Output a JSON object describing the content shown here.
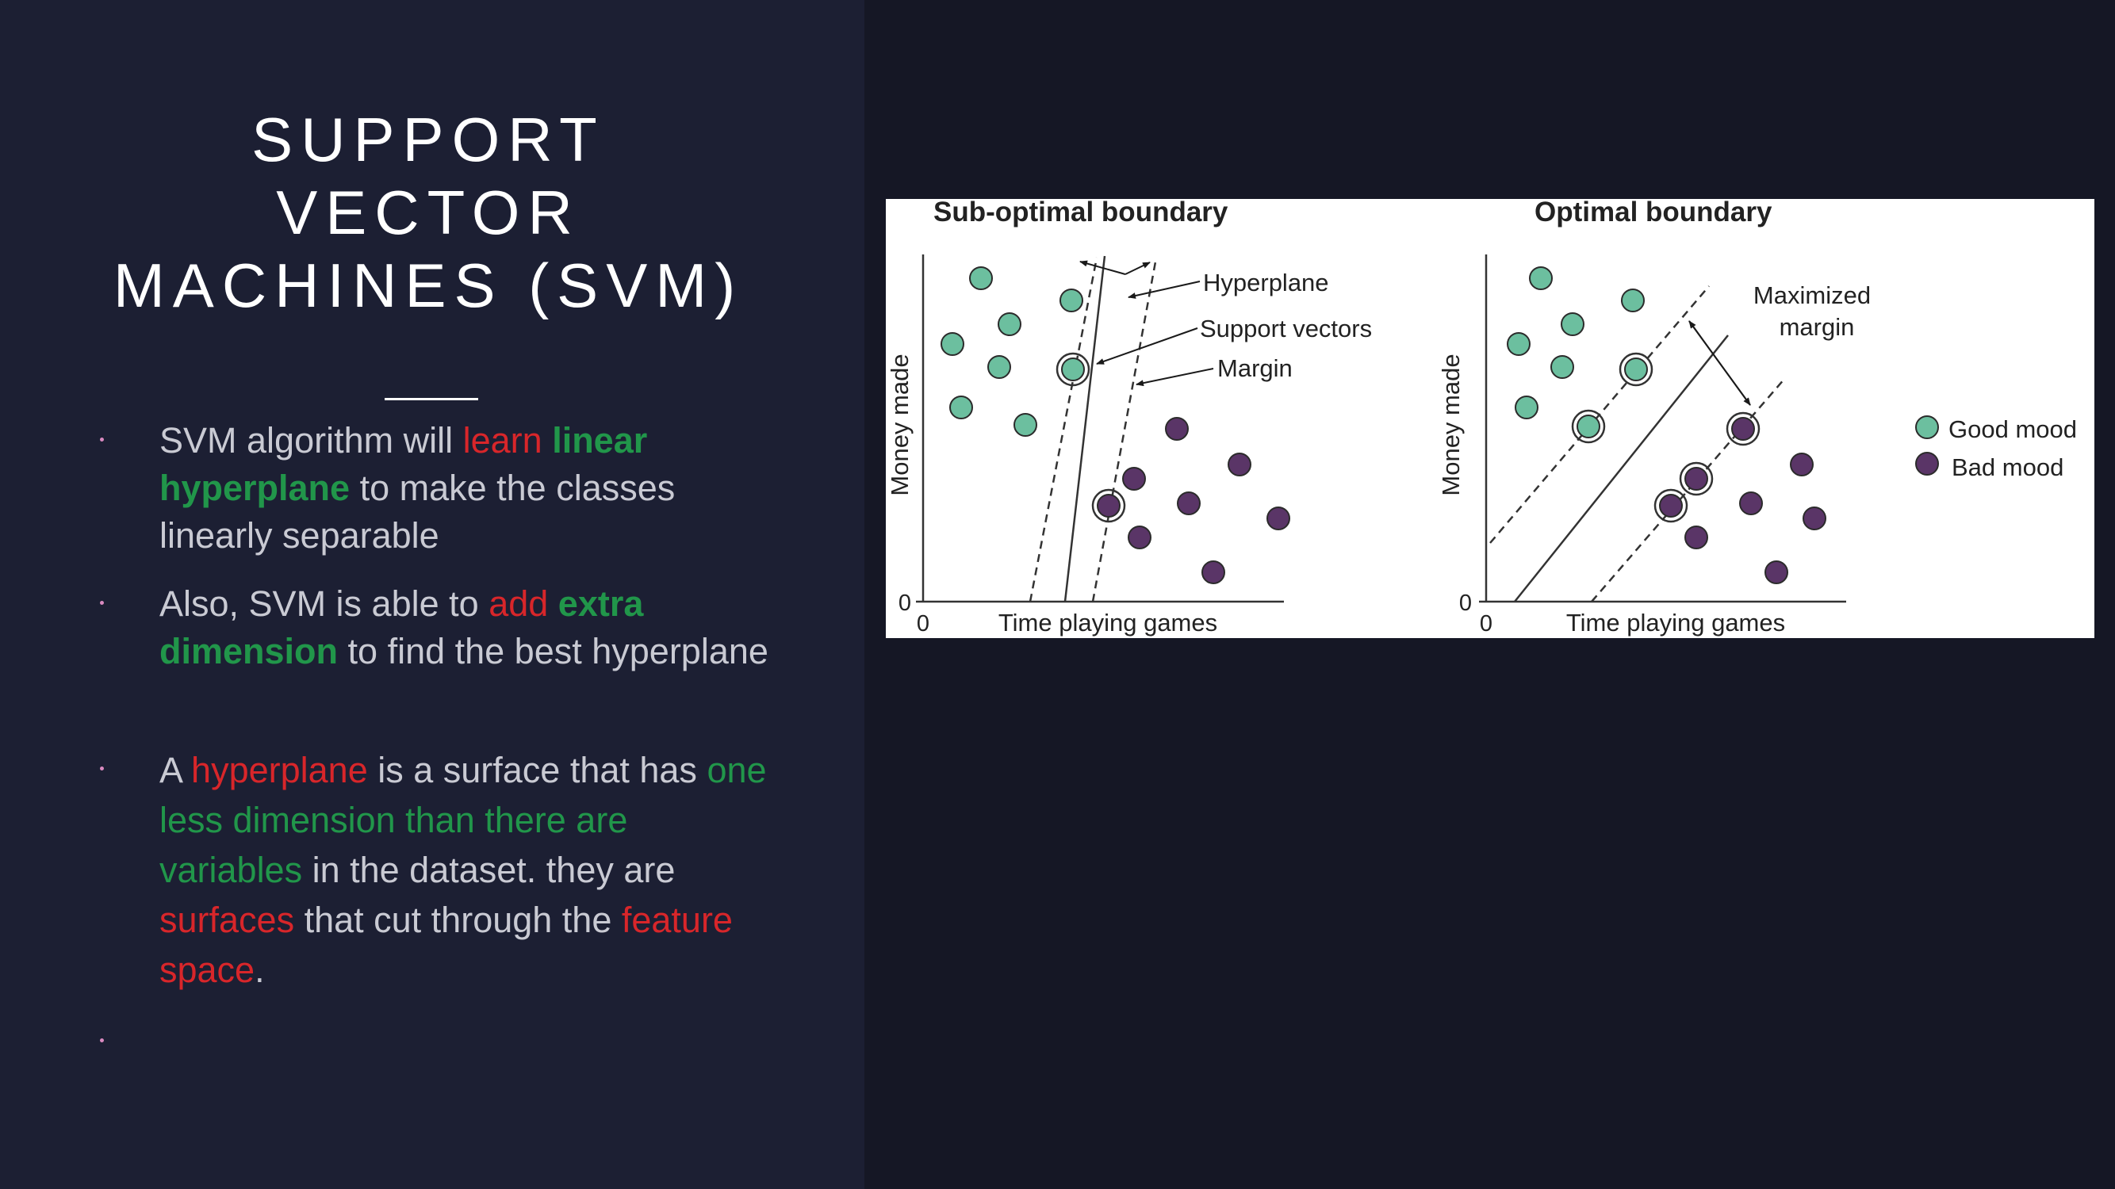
{
  "slide": {
    "title_lines": [
      "SUPPORT",
      "VECTOR",
      "MACHINES (SVM)"
    ]
  },
  "bullets": [
    {
      "parts": [
        {
          "text": "SVM algorithm will "
        },
        {
          "text": "learn",
          "style": "red"
        },
        {
          "text": " "
        },
        {
          "text": "linear hyperplane",
          "style": "green-bold"
        },
        {
          "text": " to make the classes linearly separable"
        }
      ]
    },
    {
      "parts": [
        {
          "text": "Also, SVM is able to "
        },
        {
          "text": "add",
          "style": "red"
        },
        {
          "text": " "
        },
        {
          "text": "extra dimension",
          "style": "green-bold"
        },
        {
          "text": " to find the best hyperplane"
        }
      ]
    },
    {
      "parts": [
        {
          "text": "A "
        },
        {
          "text": "hyperplane",
          "style": "red"
        },
        {
          "text": " is a surface that has "
        },
        {
          "text": "one less dimension than there are variables",
          "style": "green"
        },
        {
          "text": " in the dataset. they are "
        },
        {
          "text": "surfaces",
          "style": "red"
        },
        {
          "text": " that cut through the "
        },
        {
          "text": "feature space",
          "style": "red"
        },
        {
          "text": "."
        }
      ]
    },
    {
      "parts": []
    }
  ],
  "figure": {
    "left_panel": {
      "title": "Sub-optimal boundary",
      "ylabel": "Money made",
      "xlabel": "Time playing games",
      "origin_x": "0",
      "origin_y": "0",
      "annotations": [
        "Hyperplane",
        "Support vectors",
        "Margin"
      ]
    },
    "right_panel": {
      "title": "Optimal boundary",
      "ylabel": "Money made",
      "xlabel": "Time playing games",
      "origin_x": "0",
      "origin_y": "0",
      "annotation_lines": [
        "Maximized",
        "margin"
      ]
    },
    "legend": [
      {
        "label": "Good mood",
        "color": "#6cbf9f"
      },
      {
        "label": "Bad mood",
        "color": "#5a3567"
      }
    ]
  },
  "colors": {
    "accent_red": "#d8262a",
    "accent_green": "#21964a",
    "good_mood": "#6cbf9f",
    "bad_mood": "#5a3567"
  }
}
